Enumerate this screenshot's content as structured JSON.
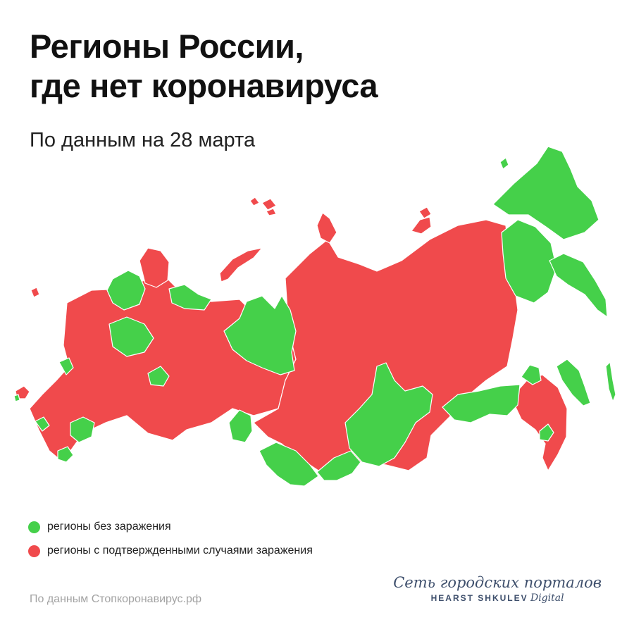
{
  "title_line1": "Регионы России,",
  "title_line2": "где нет коронавируса",
  "subtitle": "По данным на 28 марта",
  "colors": {
    "infected": "#f04a4c",
    "free": "#45d04a"
  },
  "legend": [
    {
      "label": "регионы без заражения",
      "color": "#45d04a"
    },
    {
      "label": "регионы с подтвержденными случаями заражения",
      "color": "#f04a4c"
    }
  ],
  "source": "По данным Стопкоронавирус.рф",
  "brand": {
    "line1": "Сеть городских порталов",
    "line2_bold": "HEARST SHKULEV",
    "line2_italic": "Digital"
  }
}
